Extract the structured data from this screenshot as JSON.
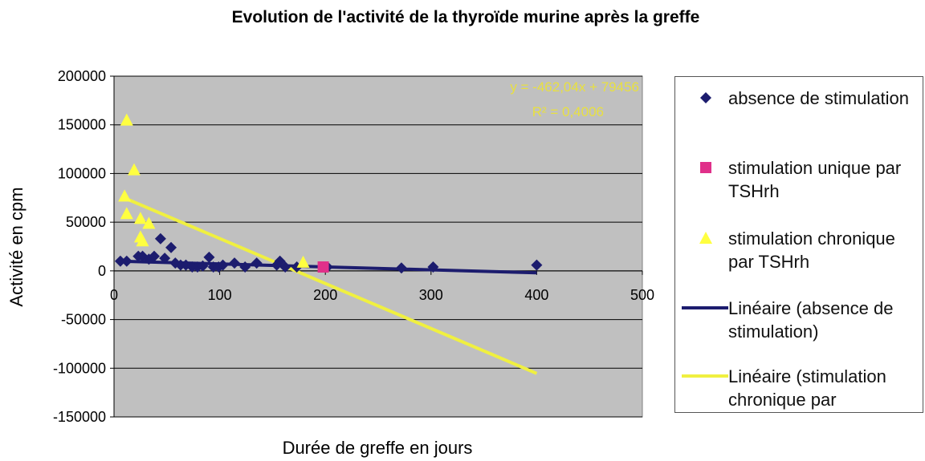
{
  "chart_data": {
    "type": "scatter",
    "title": "Evolution de l'activité de la thyroïde murine après la greffe",
    "x_label": "Durée de greffe en jours",
    "y_label": "Activité en cpm",
    "xlim": [
      0,
      500
    ],
    "xticks": [
      0,
      100,
      200,
      300,
      400,
      500
    ],
    "ylim": [
      -150000,
      200000
    ],
    "yticks": [
      -150000,
      -100000,
      -50000,
      0,
      50000,
      100000,
      150000,
      200000
    ],
    "grid": true,
    "series": [
      {
        "name": "absence de stimulation",
        "color": "#1c1c6e",
        "marker": "diamond",
        "x": [
          6,
          12,
          23,
          27,
          33,
          38,
          44,
          48,
          54,
          58,
          63,
          68,
          74,
          79,
          84,
          90,
          94,
          99,
          103,
          114,
          124,
          135,
          154,
          157,
          162,
          173,
          202,
          272,
          302,
          400
        ],
        "values": [
          10000,
          10000,
          15000,
          15000,
          12000,
          15000,
          33000,
          13000,
          24000,
          8000,
          6000,
          6000,
          4000,
          4000,
          5000,
          14000,
          4000,
          4000,
          6000,
          8000,
          4000,
          8000,
          6000,
          10000,
          4000,
          4000,
          4000,
          3000,
          4000,
          6000
        ]
      },
      {
        "name": "stimulation unique par TSHrh",
        "color": "#e0308a",
        "marker": "square",
        "x": [
          198
        ],
        "values": [
          4000
        ]
      },
      {
        "name": "stimulation chronique par TSHrh",
        "color": "#ffff40",
        "marker": "triangle",
        "x": [
          12,
          19,
          10,
          12,
          25,
          25,
          27,
          33,
          179
        ],
        "values": [
          155000,
          104000,
          77000,
          59000,
          54000,
          35000,
          31000,
          49000,
          9000
        ]
      }
    ],
    "trendlines": [
      {
        "name": "Linéaire (absence de stimulation)",
        "color": "#1c1c6e",
        "x": [
          5,
          400
        ],
        "values": [
          10000,
          -2000
        ]
      },
      {
        "name": "Linéaire (stimulation chronique par",
        "color": "#f0f040",
        "x": [
          8,
          400
        ],
        "values": [
          75760,
          -105360
        ]
      }
    ],
    "annotations": [
      "y = -462,04x + 79456",
      "R² = 0,4006"
    ]
  }
}
